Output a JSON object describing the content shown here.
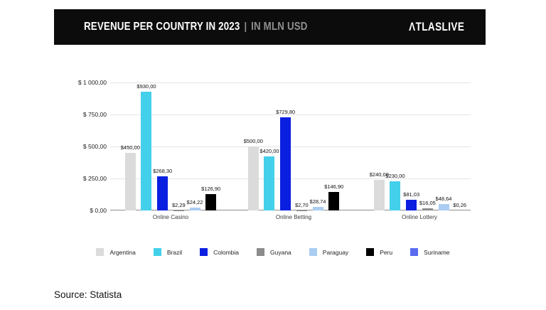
{
  "header": {
    "title_main": "REVENUE PER COUNTRY IN 2023",
    "title_separator": "|",
    "title_unit": "IN MLN USD",
    "logo_text": "ΛTLASLIVE"
  },
  "footer": {
    "source": "Source: Statista"
  },
  "chart_data": {
    "type": "bar",
    "title": "Revenue per country in 2023 | in MLN USD",
    "categories": [
      "Online Casino",
      "Online Betting",
      "Online Lottery"
    ],
    "series": [
      {
        "name": "Argentina",
        "color": "#dbdbdb",
        "values": [
          450.0,
          500.0,
          240.0
        ],
        "labels": [
          "$450,00",
          "$500,00",
          "$240,00"
        ]
      },
      {
        "name": "Brazil",
        "color": "#43d0ea",
        "values": [
          930.0,
          420.0,
          230.0
        ],
        "labels": [
          "$930,00",
          "$420,00",
          "$230,00"
        ]
      },
      {
        "name": "Colombia",
        "color": "#0a1fe0",
        "values": [
          268.3,
          729.8,
          81.03
        ],
        "labels": [
          "$268,30",
          "$729,80",
          "$81,03"
        ]
      },
      {
        "name": "Guyana",
        "color": "#8c8c8c",
        "values": [
          2.29,
          2.7,
          16.05
        ],
        "labels": [
          "$2,29",
          "$2,70",
          "$16,05"
        ]
      },
      {
        "name": "Paraguay",
        "color": "#aacdf2",
        "values": [
          24.22,
          28.74,
          48.64
        ],
        "labels": [
          "$24,22",
          "$28,74",
          "$48,64"
        ]
      },
      {
        "name": "Peru",
        "color": "#000000",
        "values": [
          126.9,
          146.9,
          null
        ],
        "labels": [
          "$126,90",
          "$146,90",
          null
        ]
      },
      {
        "name": "Suriname",
        "color": "#5a6bee",
        "values": [
          null,
          null,
          0.26
        ],
        "labels": [
          null,
          null,
          "$0,26"
        ]
      }
    ],
    "ylim": [
      0,
      1000
    ],
    "yticks": [
      {
        "value": 0,
        "label": "$ 0,00"
      },
      {
        "value": 250,
        "label": "$ 250,00"
      },
      {
        "value": 500,
        "label": "$ 500,00"
      },
      {
        "value": 750,
        "label": "$ 750,00"
      },
      {
        "value": 1000,
        "label": "$ 1 000,00"
      }
    ],
    "grid": true,
    "legend_position": "bottom",
    "value_label_format": "comma-decimal USD"
  }
}
